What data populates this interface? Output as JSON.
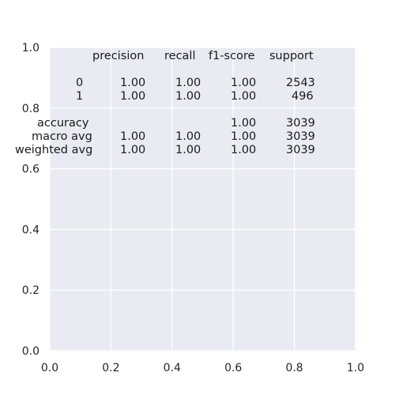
{
  "chart_data": {
    "type": "table",
    "title": "",
    "xlabel": "",
    "ylabel": "",
    "xlim": [
      0.0,
      1.0
    ],
    "ylim": [
      0.0,
      1.0
    ],
    "grid": true,
    "xticks": [
      "0.0",
      "0.2",
      "0.4",
      "0.6",
      "0.8",
      "1.0"
    ],
    "yticks": [
      "0.0",
      "0.2",
      "0.4",
      "0.6",
      "0.8",
      "1.0"
    ],
    "report_lines": [
      "              precision    recall  f1-score   support",
      "",
      "           0       1.00      1.00      1.00      2543",
      "           1       1.00      1.00      1.00       496",
      "",
      "    accuracy                           1.00      3039",
      "   macro avg       1.00      1.00      1.00      3039",
      "weighted avg       1.00      1.00      1.00      3039"
    ],
    "text_anchor": [
      0.01,
      0.99
    ],
    "colors": {
      "axes_bg": "#eaeaf2",
      "grid": "#ffffff",
      "text": "#1a1a1a"
    }
  }
}
